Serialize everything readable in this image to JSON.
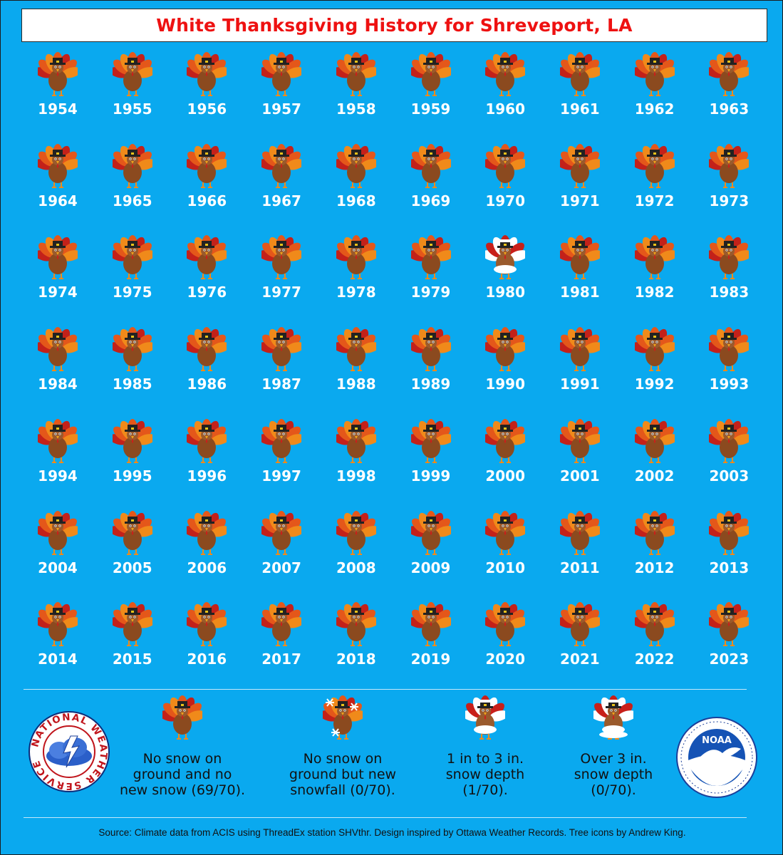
{
  "title": "White Thanksgiving History for Shreveport, LA",
  "colors": {
    "background": "#0aa9ef",
    "title_text": "#ee1111",
    "year_text": "#ffffff"
  },
  "years": [
    {
      "year": "1954",
      "category": "no-snow"
    },
    {
      "year": "1955",
      "category": "no-snow"
    },
    {
      "year": "1956",
      "category": "no-snow"
    },
    {
      "year": "1957",
      "category": "no-snow"
    },
    {
      "year": "1958",
      "category": "no-snow"
    },
    {
      "year": "1959",
      "category": "no-snow"
    },
    {
      "year": "1960",
      "category": "no-snow"
    },
    {
      "year": "1961",
      "category": "no-snow"
    },
    {
      "year": "1962",
      "category": "no-snow"
    },
    {
      "year": "1963",
      "category": "no-snow"
    },
    {
      "year": "1964",
      "category": "no-snow"
    },
    {
      "year": "1965",
      "category": "no-snow"
    },
    {
      "year": "1966",
      "category": "no-snow"
    },
    {
      "year": "1967",
      "category": "no-snow"
    },
    {
      "year": "1968",
      "category": "no-snow"
    },
    {
      "year": "1969",
      "category": "no-snow"
    },
    {
      "year": "1970",
      "category": "no-snow"
    },
    {
      "year": "1971",
      "category": "no-snow"
    },
    {
      "year": "1972",
      "category": "no-snow"
    },
    {
      "year": "1973",
      "category": "no-snow"
    },
    {
      "year": "1974",
      "category": "no-snow"
    },
    {
      "year": "1975",
      "category": "no-snow"
    },
    {
      "year": "1976",
      "category": "no-snow"
    },
    {
      "year": "1977",
      "category": "no-snow"
    },
    {
      "year": "1978",
      "category": "no-snow"
    },
    {
      "year": "1979",
      "category": "no-snow"
    },
    {
      "year": "1980",
      "category": "snow-depth-1-3"
    },
    {
      "year": "1981",
      "category": "no-snow"
    },
    {
      "year": "1982",
      "category": "no-snow"
    },
    {
      "year": "1983",
      "category": "no-snow"
    },
    {
      "year": "1984",
      "category": "no-snow"
    },
    {
      "year": "1985",
      "category": "no-snow"
    },
    {
      "year": "1986",
      "category": "no-snow"
    },
    {
      "year": "1987",
      "category": "no-snow"
    },
    {
      "year": "1988",
      "category": "no-snow"
    },
    {
      "year": "1989",
      "category": "no-snow"
    },
    {
      "year": "1990",
      "category": "no-snow"
    },
    {
      "year": "1991",
      "category": "no-snow"
    },
    {
      "year": "1992",
      "category": "no-snow"
    },
    {
      "year": "1993",
      "category": "no-snow"
    },
    {
      "year": "1994",
      "category": "no-snow"
    },
    {
      "year": "1995",
      "category": "no-snow"
    },
    {
      "year": "1996",
      "category": "no-snow"
    },
    {
      "year": "1997",
      "category": "no-snow"
    },
    {
      "year": "1998",
      "category": "no-snow"
    },
    {
      "year": "1999",
      "category": "no-snow"
    },
    {
      "year": "2000",
      "category": "no-snow"
    },
    {
      "year": "2001",
      "category": "no-snow"
    },
    {
      "year": "2002",
      "category": "no-snow"
    },
    {
      "year": "2003",
      "category": "no-snow"
    },
    {
      "year": "2004",
      "category": "no-snow"
    },
    {
      "year": "2005",
      "category": "no-snow"
    },
    {
      "year": "2006",
      "category": "no-snow"
    },
    {
      "year": "2007",
      "category": "no-snow"
    },
    {
      "year": "2008",
      "category": "no-snow"
    },
    {
      "year": "2009",
      "category": "no-snow"
    },
    {
      "year": "2010",
      "category": "no-snow"
    },
    {
      "year": "2011",
      "category": "no-snow"
    },
    {
      "year": "2012",
      "category": "no-snow"
    },
    {
      "year": "2013",
      "category": "no-snow"
    },
    {
      "year": "2014",
      "category": "no-snow"
    },
    {
      "year": "2015",
      "category": "no-snow"
    },
    {
      "year": "2016",
      "category": "no-snow"
    },
    {
      "year": "2017",
      "category": "no-snow"
    },
    {
      "year": "2018",
      "category": "no-snow"
    },
    {
      "year": "2019",
      "category": "no-snow"
    },
    {
      "year": "2020",
      "category": "no-snow"
    },
    {
      "year": "2021",
      "category": "no-snow"
    },
    {
      "year": "2022",
      "category": "no-snow"
    },
    {
      "year": "2023",
      "category": "no-snow"
    }
  ],
  "legend": [
    {
      "category": "no-snow",
      "icon": "turkey-icon",
      "lines": [
        "No snow on",
        "ground and no",
        "new snow (69/70)."
      ]
    },
    {
      "category": "new-snowfall",
      "icon": "turkey-snowflakes-icon",
      "lines": [
        "No snow on",
        "ground but new",
        "snowfall (0/70)."
      ]
    },
    {
      "category": "snow-depth-1-3",
      "icon": "turkey-snowy-icon",
      "lines": [
        "1 in to 3 in.",
        "snow depth",
        "(1/70)."
      ]
    },
    {
      "category": "snow-depth-over-3",
      "icon": "turkey-very-snowy-icon",
      "lines": [
        "Over 3 in.",
        "snow depth",
        "(0/70)."
      ]
    }
  ],
  "logos": {
    "nws": {
      "icon": "nws-logo-icon",
      "text": "NATIONAL WEATHER SERVICE"
    },
    "noaa": {
      "icon": "noaa-logo-icon",
      "text": "NOAA"
    }
  },
  "source": "Source: Climate data from ACIS using ThreadEx station SHVthr. Design inspired by Ottawa Weather Records. Tree icons by Andrew King."
}
